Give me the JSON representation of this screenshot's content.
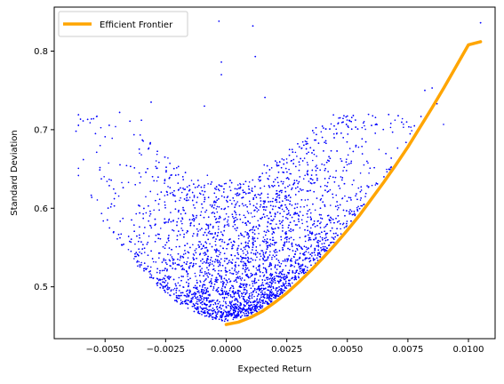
{
  "chart_data": {
    "type": "scatter",
    "xlabel": "Expected Return",
    "ylabel": "Standard Deviation",
    "xlim": [
      -0.0071,
      0.0111
    ],
    "ylim": [
      0.434,
      0.856
    ],
    "x_ticks": [
      -0.005,
      -0.0025,
      0.0,
      0.0025,
      0.005,
      0.0075,
      0.01
    ],
    "x_tick_labels": [
      "−0.0050",
      "−0.0025",
      "0.0000",
      "0.0025",
      "0.0050",
      "0.0075",
      "0.0100"
    ],
    "y_ticks": [
      0.5,
      0.6,
      0.7,
      0.8
    ],
    "y_tick_labels": [
      "0.5",
      "0.6",
      "0.7",
      "0.8"
    ],
    "grid": false,
    "legend_position": "top-left",
    "series": [
      {
        "name": "Efficient Frontier",
        "kind": "line",
        "color": "#ffa500",
        "x": [
          0.0,
          0.0005,
          0.001,
          0.0015,
          0.002,
          0.0025,
          0.003,
          0.0035,
          0.004,
          0.0045,
          0.005,
          0.0055,
          0.006,
          0.0065,
          0.007,
          0.0075,
          0.008,
          0.0085,
          0.009,
          0.0095,
          0.01,
          0.0105
        ],
        "y": [
          0.452,
          0.455,
          0.461,
          0.469,
          0.48,
          0.492,
          0.506,
          0.521,
          0.537,
          0.554,
          0.572,
          0.591,
          0.612,
          0.633,
          0.655,
          0.678,
          0.703,
          0.728,
          0.754,
          0.781,
          0.808,
          0.812
        ]
      },
      {
        "kind": "scatter",
        "color": "#0000ff",
        "description_points": "sampled portfolios; dense cloud between the frontier and upper region",
        "outliers": [
          {
            "x": -0.0062,
            "y": 0.698
          },
          {
            "x": -0.0003,
            "y": 0.838
          },
          {
            "x": 0.0011,
            "y": 0.832
          },
          {
            "x": -0.0002,
            "y": 0.786
          },
          {
            "x": -0.0002,
            "y": 0.77
          },
          {
            "x": 0.0012,
            "y": 0.793
          },
          {
            "x": 0.0105,
            "y": 0.836
          },
          {
            "x": 0.0085,
            "y": 0.753
          },
          {
            "x": 0.0082,
            "y": 0.75
          },
          {
            "x": 0.0087,
            "y": 0.733
          },
          {
            "x": 0.0016,
            "y": 0.741
          },
          {
            "x": -0.0009,
            "y": 0.73
          },
          {
            "x": -0.0031,
            "y": 0.735
          },
          {
            "x": -0.0044,
            "y": 0.722
          },
          {
            "x": -0.0035,
            "y": 0.712
          }
        ]
      }
    ]
  }
}
